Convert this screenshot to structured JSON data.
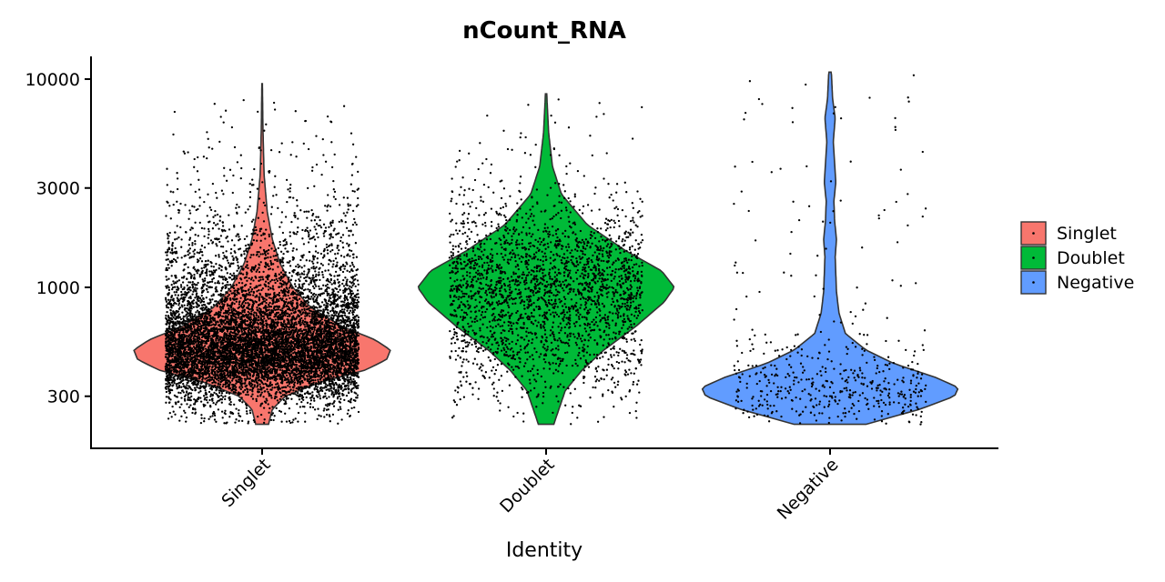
{
  "chart_data": {
    "type": "violin",
    "title": "nCount_RNA",
    "xlabel": "Identity",
    "ylabel": "",
    "y_scale": "log10",
    "ylim": [
      200,
      11000
    ],
    "y_ticks": [
      300,
      1000,
      3000,
      10000
    ],
    "y_tick_labels": [
      "300",
      "1000",
      "3000",
      "10000"
    ],
    "categories": [
      "Singlet",
      "Doublet",
      "Negative"
    ],
    "grid": false,
    "legend_position": "right",
    "legend": [
      {
        "label": "Singlet",
        "color": "#F8766D"
      },
      {
        "label": "Doublet",
        "color": "#00BA38"
      },
      {
        "label": "Negative",
        "color": "#619CFF"
      }
    ],
    "series": [
      {
        "name": "Singlet",
        "color": "#F8766D",
        "point_count_approx": 9000,
        "jitter_width": 0.85,
        "min": 220,
        "max": 9500,
        "profile": [
          [
            220,
            0.05
          ],
          [
            260,
            0.08
          ],
          [
            300,
            0.18
          ],
          [
            350,
            0.45
          ],
          [
            400,
            0.8
          ],
          [
            450,
            0.97
          ],
          [
            500,
            1.0
          ],
          [
            560,
            0.88
          ],
          [
            650,
            0.62
          ],
          [
            800,
            0.38
          ],
          [
            1000,
            0.24
          ],
          [
            1300,
            0.14
          ],
          [
            1700,
            0.08
          ],
          [
            2300,
            0.04
          ],
          [
            3500,
            0.015
          ],
          [
            6000,
            0.006
          ],
          [
            9500,
            0.002
          ]
        ]
      },
      {
        "name": "Doublet",
        "color": "#00BA38",
        "point_count_approx": 2500,
        "jitter_width": 0.85,
        "min": 220,
        "max": 8500,
        "profile": [
          [
            220,
            0.06
          ],
          [
            260,
            0.1
          ],
          [
            320,
            0.15
          ],
          [
            400,
            0.28
          ],
          [
            500,
            0.45
          ],
          [
            650,
            0.7
          ],
          [
            850,
            0.92
          ],
          [
            1000,
            1.0
          ],
          [
            1200,
            0.9
          ],
          [
            1500,
            0.62
          ],
          [
            2000,
            0.32
          ],
          [
            2800,
            0.12
          ],
          [
            3800,
            0.05
          ],
          [
            5500,
            0.02
          ],
          [
            8500,
            0.005
          ]
        ]
      },
      {
        "name": "Negative",
        "color": "#619CFF",
        "point_count_approx": 500,
        "jitter_width": 0.85,
        "min": 220,
        "max": 10800,
        "profile": [
          [
            220,
            0.28
          ],
          [
            260,
            0.7
          ],
          [
            300,
            0.97
          ],
          [
            330,
            1.0
          ],
          [
            370,
            0.82
          ],
          [
            430,
            0.5
          ],
          [
            500,
            0.28
          ],
          [
            600,
            0.12
          ],
          [
            750,
            0.07
          ],
          [
            950,
            0.05
          ],
          [
            1150,
            0.045
          ],
          [
            1400,
            0.04
          ],
          [
            1700,
            0.05
          ],
          [
            2100,
            0.035
          ],
          [
            2600,
            0.03
          ],
          [
            3200,
            0.045
          ],
          [
            4000,
            0.035
          ],
          [
            5000,
            0.025
          ],
          [
            6500,
            0.04
          ],
          [
            8000,
            0.02
          ],
          [
            10800,
            0.01
          ]
        ]
      }
    ]
  }
}
